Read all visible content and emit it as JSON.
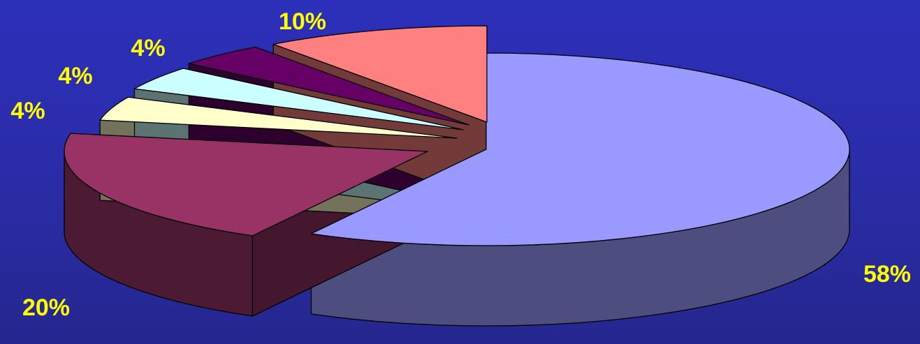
{
  "chart_data": {
    "type": "pie",
    "style": "3d-exploded",
    "slices": [
      {
        "value": 58,
        "label": "58%",
        "color": "#9999ff"
      },
      {
        "value": 20,
        "label": "20%",
        "color": "#993366"
      },
      {
        "value": 4,
        "label": "4%",
        "color": "#ffffcc"
      },
      {
        "value": 4,
        "label": "4%",
        "color": "#ccffff"
      },
      {
        "value": 4,
        "label": "4%",
        "color": "#660066"
      },
      {
        "value": 10,
        "label": "10%",
        "color": "#ff8080"
      }
    ],
    "label_color": "#ffff00",
    "legend": false
  }
}
